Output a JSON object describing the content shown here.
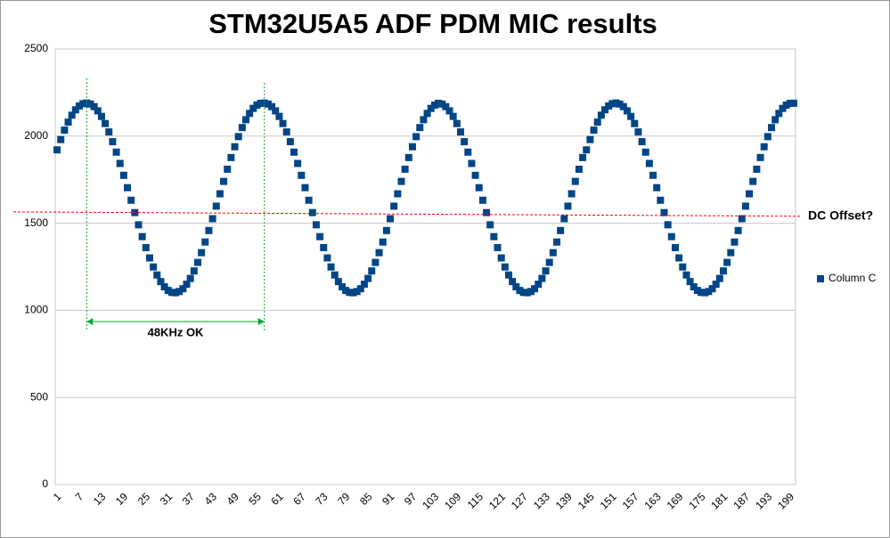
{
  "chart_data": {
    "type": "scatter",
    "title": "STM32U5A5 ADF PDM MIC results",
    "categories": [
      "1",
      null,
      null,
      null,
      null,
      null,
      "7",
      null,
      null,
      null,
      null,
      null,
      "13",
      null,
      null,
      null,
      null,
      null,
      "19",
      null,
      null,
      null,
      null,
      null,
      "25",
      null,
      null,
      null,
      null,
      null,
      "31",
      null,
      null,
      null,
      null,
      null,
      "37",
      null,
      null,
      null,
      null,
      null,
      "43",
      null,
      null,
      null,
      null,
      null,
      "49",
      null,
      null,
      null,
      null,
      null,
      "55",
      null,
      null,
      null,
      null,
      null,
      "61",
      null,
      null,
      null,
      null,
      null,
      "67",
      null,
      null,
      null,
      null,
      null,
      "73",
      null,
      null,
      null,
      null,
      null,
      "79",
      null,
      null,
      null,
      null,
      null,
      "85",
      null,
      null,
      null,
      null,
      null,
      "91",
      null,
      null,
      null,
      null,
      null,
      "97",
      null,
      null,
      null,
      null,
      null,
      "103",
      null,
      null,
      null,
      null,
      null,
      "109",
      null,
      null,
      null,
      null,
      null,
      "115",
      null,
      null,
      null,
      null,
      null,
      "121",
      null,
      null,
      null,
      null,
      null,
      "127",
      null,
      null,
      null,
      null,
      null,
      "133",
      null,
      null,
      null,
      null,
      null,
      "139",
      null,
      null,
      null,
      null,
      null,
      "145",
      null,
      null,
      null,
      null,
      null,
      "151",
      null,
      null,
      null,
      null,
      null,
      "157",
      null,
      null,
      null,
      null,
      null,
      "163",
      null,
      null,
      null,
      null,
      null,
      "169",
      null,
      null,
      null,
      null,
      null,
      "175",
      null,
      null,
      null,
      null,
      null,
      "181",
      null,
      null,
      null,
      null,
      null,
      "187",
      null,
      null,
      null,
      null,
      null,
      "193",
      null,
      null,
      null,
      null,
      null,
      "199",
      null
    ],
    "series": [
      {
        "name": "Column C",
        "color": "#004586",
        "values": [
          1921,
          1980,
          2034,
          2080,
          2120,
          2151,
          2173,
          2186,
          2190,
          2184,
          2169,
          2145,
          2113,
          2072,
          2024,
          1968,
          1908,
          1843,
          1775,
          1704,
          1632,
          1561,
          1491,
          1423,
          1360,
          1301,
          1249,
          1203,
          1165,
          1135,
          1114,
          1103,
          1101,
          1108,
          1124,
          1150,
          1183,
          1226,
          1275,
          1331,
          1392,
          1458,
          1526,
          1598,
          1669,
          1740,
          1810,
          1877,
          1939,
          1997,
          2049,
          2094,
          2130,
          2159,
          2178,
          2188,
          2190,
          2184,
          2169,
          2145,
          2113,
          2072,
          2024,
          1968,
          1908,
          1843,
          1775,
          1704,
          1632,
          1561,
          1491,
          1423,
          1360,
          1301,
          1249,
          1203,
          1165,
          1135,
          1114,
          1103,
          1101,
          1108,
          1124,
          1150,
          1183,
          1226,
          1275,
          1331,
          1392,
          1458,
          1526,
          1598,
          1669,
          1740,
          1810,
          1877,
          1939,
          1997,
          2049,
          2094,
          2130,
          2159,
          2178,
          2188,
          2184,
          2169,
          2145,
          2113,
          2072,
          2024,
          1968,
          1908,
          1843,
          1775,
          1704,
          1632,
          1561,
          1491,
          1423,
          1360,
          1301,
          1249,
          1203,
          1165,
          1135,
          1114,
          1103,
          1101,
          1108,
          1124,
          1150,
          1183,
          1226,
          1275,
          1331,
          1392,
          1458,
          1526,
          1598,
          1669,
          1740,
          1810,
          1877,
          1921,
          1980,
          2034,
          2080,
          2120,
          2151,
          2173,
          2186,
          2190,
          2184,
          2169,
          2145,
          2113,
          2072,
          2024,
          1968,
          1908,
          1843,
          1775,
          1704,
          1632,
          1561,
          1491,
          1423,
          1360,
          1301,
          1249,
          1203,
          1165,
          1135,
          1114,
          1103,
          1101,
          1108,
          1124,
          1150,
          1183,
          1226,
          1275,
          1331,
          1392,
          1458,
          1526,
          1598,
          1669,
          1740,
          1810,
          1877,
          1939,
          1997,
          2049,
          2094,
          2130,
          2159,
          2178,
          2188,
          2189
        ]
      }
    ],
    "ylim": [
      0,
      2500
    ],
    "yticks": [
      0,
      500,
      1000,
      1500,
      2000,
      2500
    ],
    "grid": true,
    "legend": "right",
    "annotations": [
      {
        "text": "DC Offset?",
        "color": "#ff0000",
        "y": [
          1565,
          1540
        ]
      },
      {
        "text": "48KHz OK",
        "color": "#00a933",
        "x": [
          9,
          57
        ]
      }
    ]
  }
}
